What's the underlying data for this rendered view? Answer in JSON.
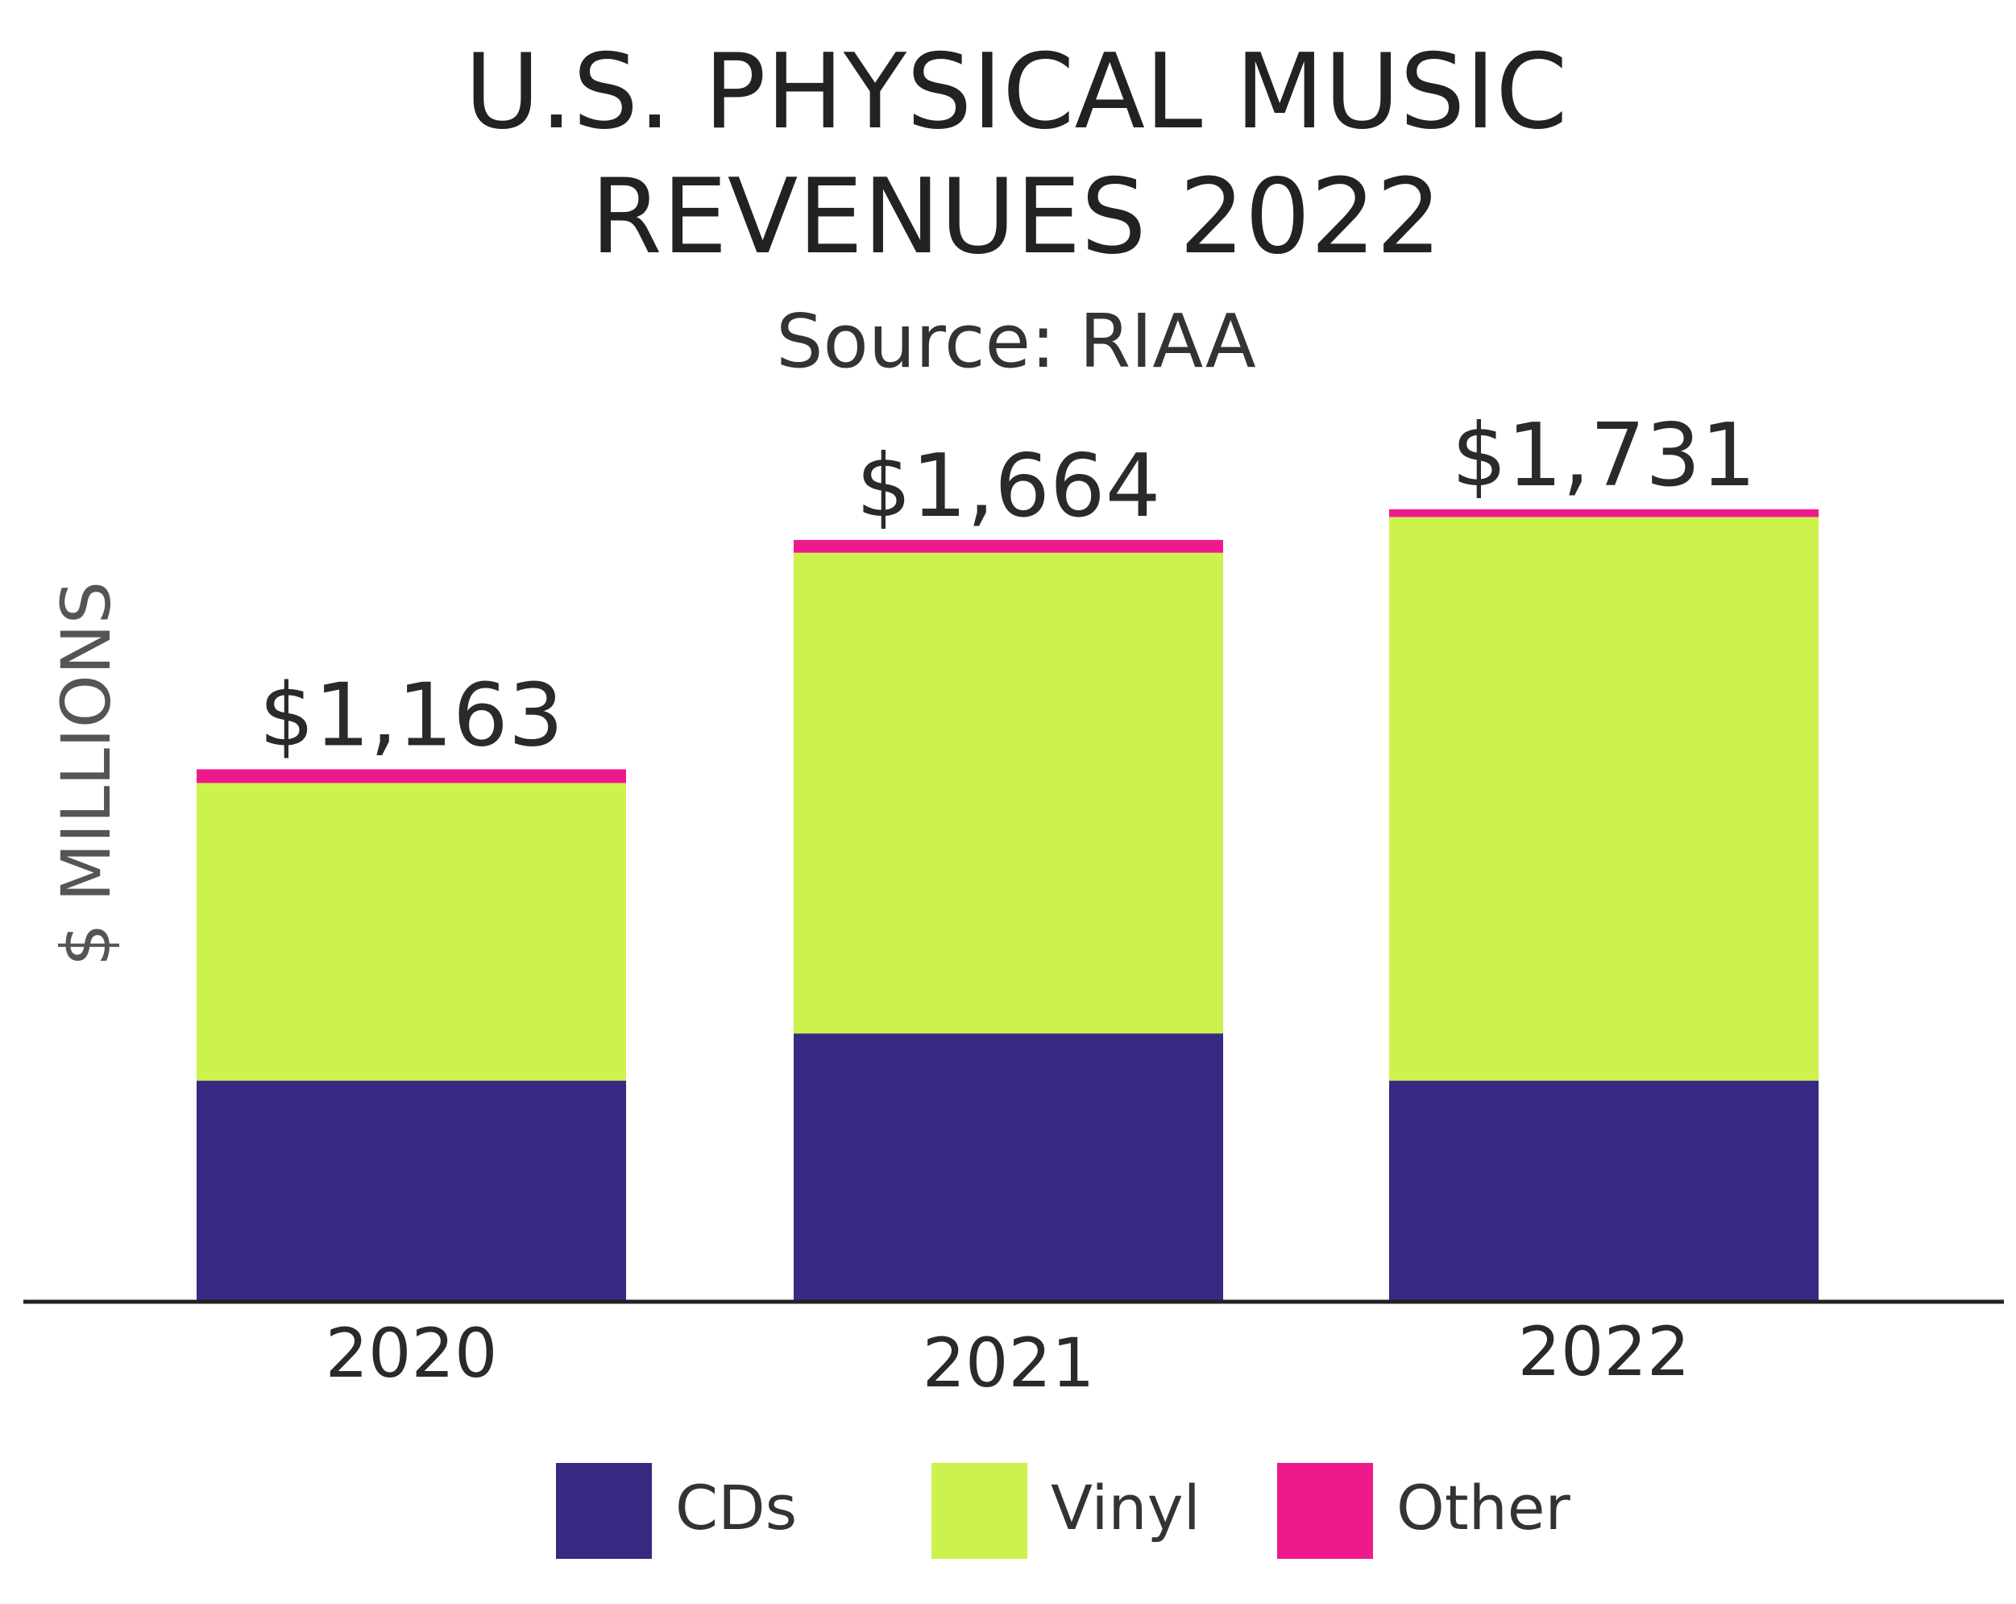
{
  "chart_data": {
    "type": "bar",
    "stacked": true,
    "title": [
      "U.S. PHYSICAL MUSIC",
      "REVENUES 2022"
    ],
    "subtitle": "Source: RIAA",
    "xlabel": "",
    "ylabel": "$ MILLIONS",
    "ylim": [
      0,
      1731
    ],
    "grid": false,
    "legend_position": "bottom",
    "categories": [
      "2020",
      "2021",
      "2022"
    ],
    "totals": [
      "$1,163",
      "$1,664",
      "$1,731"
    ],
    "total_values": [
      1163,
      1664,
      1731
    ],
    "series": [
      {
        "name": "CDs",
        "color": "#372a82",
        "values": [
          483,
          586,
          483
        ]
      },
      {
        "name": "Vinyl",
        "color": "#cdf24e",
        "values": [
          650,
          1050,
          1231
        ]
      },
      {
        "name": "Other",
        "color": "#ee1a8c",
        "values": [
          30,
          28,
          17
        ]
      }
    ]
  }
}
